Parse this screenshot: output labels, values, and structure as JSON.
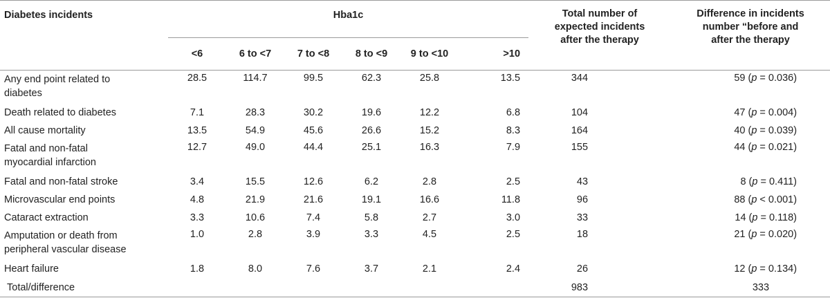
{
  "header": {
    "row_label": "Diabetes incidents",
    "group": "Hba1c",
    "hba1c_cols": [
      "<6",
      "6 to <7",
      "7 to <8",
      "8 to <9",
      "9 to <10",
      ">10"
    ],
    "total_line1": "Total number of",
    "total_line2": "expected incidents",
    "total_line3": "after the therapy",
    "diff_line1": "Difference in incidents",
    "diff_line2": "number “before and",
    "diff_line3": "after the therapy"
  },
  "rows": [
    {
      "label1": "Any end point related to",
      "label2": "diabetes",
      "v": [
        "28.5",
        "114.7",
        "99.5",
        "62.3",
        "25.8",
        "13.5"
      ],
      "total": "344",
      "diff": "59",
      "p": "p",
      "pv": " = 0.036)"
    },
    {
      "label1": "Death related to diabetes",
      "label2": "",
      "v": [
        "7.1",
        "28.3",
        "30.2",
        "19.6",
        "12.2",
        "6.8"
      ],
      "total": "104",
      "diff": "47",
      "p": "p",
      "pv": " = 0.004)"
    },
    {
      "label1": "All cause mortality",
      "label2": "",
      "v": [
        "13.5",
        "54.9",
        "45.6",
        "26.6",
        "15.2",
        "8.3"
      ],
      "total": "164",
      "diff": "40",
      "p": "p",
      "pv": " = 0.039)"
    },
    {
      "label1": "Fatal and non-fatal",
      "label2": "myocardial infarction",
      "v": [
        "12.7",
        "49.0",
        "44.4",
        "25.1",
        "16.3",
        "7.9"
      ],
      "total": "155",
      "diff": "44",
      "p": "p",
      "pv": " = 0.021)"
    },
    {
      "label1": "Fatal and non-fatal stroke",
      "label2": "",
      "v": [
        "3.4",
        "15.5",
        "12.6",
        "6.2",
        "2.8",
        "2.5"
      ],
      "total": "43",
      "diff": "8",
      "p": "p",
      "pv": " = 0.411)"
    },
    {
      "label1": "Microvascular end points",
      "label2": "",
      "v": [
        "4.8",
        "21.9",
        "21.6",
        "19.1",
        "16.6",
        "11.8"
      ],
      "total": "96",
      "diff": "88",
      "p": "p",
      "pv": " < 0.001)"
    },
    {
      "label1": "Cataract extraction",
      "label2": "",
      "v": [
        "3.3",
        "10.6",
        "7.4",
        "5.8",
        "2.7",
        "3.0"
      ],
      "total": "33",
      "diff": "14",
      "p": "p",
      "pv": " = 0.118)"
    },
    {
      "label1": "Amputation or death from",
      "label2": "peripheral vascular disease",
      "v": [
        "1.0",
        "2.8",
        "3.9",
        "3.3",
        "4.5",
        "2.5"
      ],
      "total": "18",
      "diff": "21",
      "p": "p",
      "pv": " = 0.020)"
    },
    {
      "label1": "Heart failure",
      "label2": "",
      "v": [
        "1.8",
        "8.0",
        "7.6",
        "3.7",
        "2.1",
        "2.4"
      ],
      "total": "26",
      "diff": "12",
      "p": "p",
      "pv": " = 0.134)"
    }
  ],
  "total_row": {
    "label": "Total/difference",
    "total": "983",
    "diff": "333"
  }
}
